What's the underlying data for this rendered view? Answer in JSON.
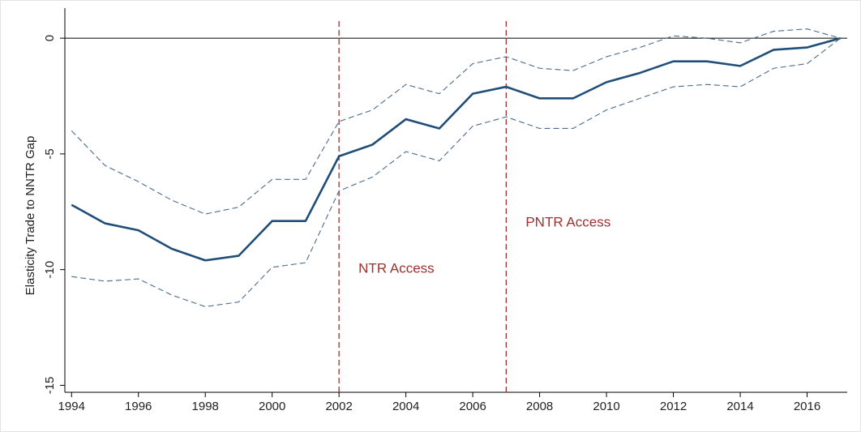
{
  "chart_data": {
    "type": "line",
    "y_label": "Elasticity Trade to NNTR Gap",
    "x": [
      1994,
      1995,
      1996,
      1997,
      1998,
      1999,
      2000,
      2001,
      2002,
      2003,
      2004,
      2005,
      2006,
      2007,
      2008,
      2009,
      2010,
      2011,
      2012,
      2013,
      2014,
      2015,
      2016,
      2017
    ],
    "series": [
      {
        "color": "#1f4e79",
        "style": "solid",
        "values": [
          -7.2,
          -8.0,
          -8.3,
          -9.1,
          -9.6,
          -9.4,
          -7.9,
          -7.9,
          -5.1,
          -4.6,
          -3.5,
          -3.9,
          -2.4,
          -2.1,
          -2.6,
          -2.6,
          -1.9,
          -1.5,
          -1.0,
          -1.0,
          -1.2,
          -0.5,
          -0.4,
          0
        ]
      },
      {
        "color": "#4a6b8c",
        "style": "dashed",
        "values": [
          -4.0,
          -5.5,
          -6.2,
          -7.0,
          -7.6,
          -7.3,
          -6.1,
          -6.1,
          -3.6,
          -3.1,
          -2.0,
          -2.4,
          -1.1,
          -0.8,
          -1.3,
          -1.4,
          -0.8,
          -0.4,
          0.1,
          0.0,
          -0.2,
          0.3,
          0.4,
          0
        ]
      },
      {
        "color": "#4a6b8c",
        "style": "dashed",
        "values": [
          -10.3,
          -10.5,
          -10.4,
          -11.1,
          -11.6,
          -11.4,
          -9.9,
          -9.7,
          -6.6,
          -6.0,
          -4.9,
          -5.3,
          -3.8,
          -3.4,
          -3.9,
          -3.9,
          -3.1,
          -2.6,
          -2.1,
          -2.0,
          -2.1,
          -1.3,
          -1.1,
          0
        ]
      }
    ],
    "xlim": [
      1993.8,
      2017.2
    ],
    "xticks": [
      1994,
      1996,
      1998,
      2000,
      2002,
      2004,
      2006,
      2008,
      2010,
      2012,
      2014,
      2016
    ],
    "ylim": [
      -15.3,
      1.3
    ],
    "yticks": [
      0,
      -5,
      -10,
      -15
    ],
    "hline": 0,
    "vlines": [
      {
        "x": 2002,
        "label": "NTR Access",
        "color": "#a0312f"
      },
      {
        "x": 2007,
        "label": "PNTR Access",
        "color": "#a0312f"
      }
    ]
  }
}
